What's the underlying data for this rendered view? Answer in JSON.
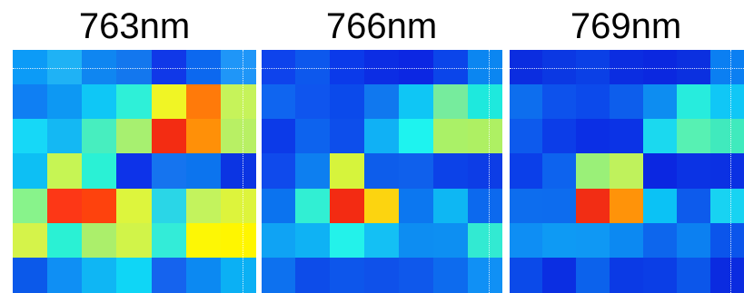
{
  "panels": [
    {
      "title": "763nm",
      "rows": [
        [
          "#0c9bf7",
          "#1fb2f5",
          "#0f86f1",
          "#1377ee",
          "#1038e8",
          "#0c68ef",
          "#1f96f8"
        ],
        [
          "#0f7ff3",
          "#0d98f3",
          "#0fc7f6",
          "#2ef0d8",
          "#f0f525",
          "#ff7a0a",
          "#c6f35a"
        ],
        [
          "#16d8f7",
          "#14b8f3",
          "#47eebf",
          "#a7f070",
          "#f32c12",
          "#ff9008",
          "#b8f064"
        ],
        [
          "#0dbff4",
          "#c6f554",
          "#2af1d5",
          "#0d33e9",
          "#1574ef",
          "#0c74ee",
          "#0b34e3"
        ],
        [
          "#88f38b",
          "#fd3716",
          "#fe420d",
          "#ddf53d",
          "#2ad6e7",
          "#c3f35d",
          "#ddf43c"
        ],
        [
          "#d5f34a",
          "#2af1d4",
          "#abef6b",
          "#d1f449",
          "#33ecd8",
          "#fdf705",
          "#fff600"
        ],
        [
          "#0b59ea",
          "#0f8ff4",
          "#0fb6f4",
          "#0fd6f6",
          "#1563ee",
          "#0c89f2",
          "#0bb0f4"
        ]
      ]
    },
    {
      "title": "766nm",
      "rows": [
        [
          "#0e43ec",
          "#0d58ed",
          "#0b3aea",
          "#0c2de4",
          "#0c27e3",
          "#0b45ea",
          "#0b86f1"
        ],
        [
          "#0f65f0",
          "#0f55ee",
          "#0b4aeb",
          "#1078ef",
          "#0fc6f5",
          "#76ec9d",
          "#1ee9dd"
        ],
        [
          "#0c3ae8",
          "#0d63ee",
          "#0d4eeb",
          "#10b1f5",
          "#1ef3ef",
          "#aaf167",
          "#aef063"
        ],
        [
          "#0f4aec",
          "#0d7ff0",
          "#d6f43c",
          "#0d5deb",
          "#0f60ec",
          "#0c42e8",
          "#0d3de6"
        ],
        [
          "#0b73ef",
          "#31efd3",
          "#f32b12",
          "#fcd410",
          "#0c77f0",
          "#0eb7f3",
          "#0c69ee"
        ],
        [
          "#0fa3f4",
          "#0fb2f4",
          "#23f2ea",
          "#14c0f4",
          "#0d8df2",
          "#0d8ff2",
          "#32ead2"
        ],
        [
          "#0d71ef",
          "#0d4ce9",
          "#0d56eb",
          "#0f51ea",
          "#0f58eb",
          "#0d6bee",
          "#1090f5"
        ]
      ]
    },
    {
      "title": "769nm",
      "rows": [
        [
          "#0b2de0",
          "#0b38e3",
          "#0b40e6",
          "#0b2de1",
          "#0b28e0",
          "#0b30e0",
          "#0b7ff2"
        ],
        [
          "#0d6eee",
          "#0d52ec",
          "#0c4aeb",
          "#0d5eec",
          "#0d8df1",
          "#27ecdd",
          "#10c7f6"
        ],
        [
          "#0d5aed",
          "#0c3de8",
          "#0b2fe5",
          "#0b33e6",
          "#1bd9ef",
          "#57f1b3",
          "#40eabd"
        ],
        [
          "#0b3fe9",
          "#0d63ee",
          "#9af078",
          "#bff25c",
          "#0b27e1",
          "#0b33e4",
          "#0b31e3"
        ],
        [
          "#0d6dee",
          "#0d6cee",
          "#f22d14",
          "#ff9309",
          "#0bc2f5",
          "#0d5bec",
          "#18d3f2"
        ],
        [
          "#0e8ef4",
          "#0e9af4",
          "#0f98f4",
          "#0c89f2",
          "#0d66ed",
          "#0c80f1",
          "#0b55eb"
        ],
        [
          "#0b4ae9",
          "#0b2ee2",
          "#0c62ec",
          "#0b3ae5",
          "#0b3ee6",
          "#0c56ea",
          "#0b2be0"
        ]
      ]
    }
  ]
}
